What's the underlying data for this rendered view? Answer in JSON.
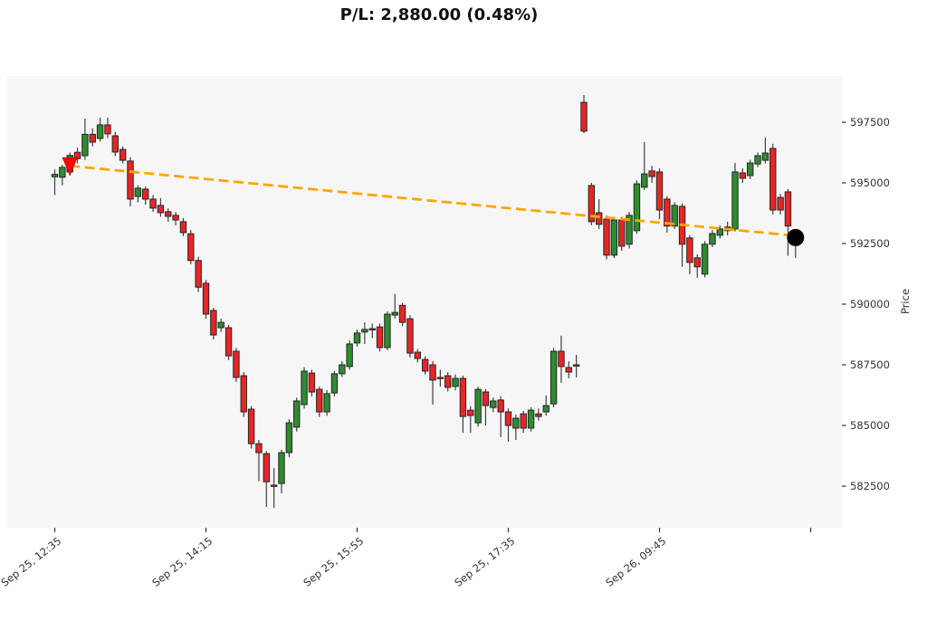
{
  "title": "P/L: 2,880.00 (0.48%)",
  "chart_data": {
    "type": "candlestick",
    "title": "P/L: 2,880.00 (0.48%)",
    "ylabel": "Price",
    "xlabel": "",
    "grid": false,
    "legend": "none",
    "ylim": [
      580800,
      599370
    ],
    "y_ticks": [
      597500,
      595000,
      592500,
      590000,
      587500,
      585000,
      582500
    ],
    "x_ticks": [
      {
        "index": 0,
        "label": "Sep 25, 12:35"
      },
      {
        "index": 20,
        "label": "Sep 25, 14:15"
      },
      {
        "index": 40,
        "label": "Sep 25, 15:55"
      },
      {
        "index": 60,
        "label": "Sep 25, 17:35"
      },
      {
        "index": 80,
        "label": "Sep 26, 09:45"
      },
      {
        "index": 100,
        "label": ""
      }
    ],
    "colors": {
      "up": "#2e8b2e",
      "down": "#e82525",
      "candle_outline": "#262626",
      "wick": "#404040",
      "trade_line": "#ffa500",
      "entry_marker": "#ff0000",
      "exit_marker": "#000000",
      "plot_bg": "#f6f6f6",
      "tick_text": "#333333"
    },
    "trade": {
      "entry_index": 2,
      "entry_price": 595700,
      "exit_index": 98,
      "exit_price": 592820,
      "pl_value": "2,880.00",
      "pl_percent": "0.48%"
    },
    "candles": [
      [
        595250,
        595550,
        594500,
        595350
      ],
      [
        595230,
        595750,
        594900,
        595640
      ],
      [
        595450,
        596250,
        595300,
        596130
      ],
      [
        596260,
        596450,
        595800,
        596000
      ],
      [
        596120,
        597650,
        595950,
        597000
      ],
      [
        597000,
        597250,
        596500,
        596680
      ],
      [
        596830,
        597690,
        596700,
        597390
      ],
      [
        597390,
        597690,
        596850,
        597020
      ],
      [
        596940,
        597100,
        596100,
        596270
      ],
      [
        596380,
        596500,
        595800,
        595930
      ],
      [
        595900,
        596050,
        594030,
        594330
      ],
      [
        594440,
        594900,
        594200,
        594780
      ],
      [
        594740,
        594850,
        594100,
        594330
      ],
      [
        594330,
        594500,
        593800,
        593960
      ],
      [
        594070,
        594370,
        593600,
        593770
      ],
      [
        593810,
        593950,
        593400,
        593620
      ],
      [
        593660,
        593800,
        593250,
        593470
      ],
      [
        593400,
        593550,
        592800,
        592950
      ],
      [
        592900,
        593050,
        591650,
        591800
      ],
      [
        591800,
        591950,
        590500,
        590700
      ],
      [
        590860,
        591000,
        589400,
        589590
      ],
      [
        589740,
        589850,
        588550,
        588730
      ],
      [
        589030,
        589400,
        588850,
        589250
      ],
      [
        589030,
        589150,
        587700,
        587870
      ],
      [
        588060,
        588200,
        586800,
        586980
      ],
      [
        587050,
        587200,
        585350,
        585560
      ],
      [
        585670,
        585800,
        584050,
        584250
      ],
      [
        584250,
        584400,
        582700,
        583880
      ],
      [
        583840,
        583950,
        581640,
        582680
      ],
      [
        582540,
        583250,
        581600,
        582500
      ],
      [
        582610,
        584000,
        582200,
        583880
      ],
      [
        583880,
        585250,
        583700,
        585110
      ],
      [
        584930,
        586150,
        584750,
        586010
      ],
      [
        585860,
        587400,
        585700,
        587240
      ],
      [
        587160,
        587300,
        586200,
        586380
      ],
      [
        586490,
        586600,
        585350,
        585560
      ],
      [
        585560,
        586450,
        585400,
        586310
      ],
      [
        586340,
        587250,
        586200,
        587130
      ],
      [
        587130,
        587650,
        587000,
        587500
      ],
      [
        587430,
        588500,
        587300,
        588360
      ],
      [
        588400,
        588950,
        588250,
        588810
      ],
      [
        588850,
        589250,
        588360,
        588960
      ],
      [
        588990,
        589200,
        588600,
        588970
      ],
      [
        589060,
        589200,
        588050,
        588210
      ],
      [
        588210,
        589700,
        588100,
        589590
      ],
      [
        589550,
        590420,
        589400,
        589660
      ],
      [
        589950,
        590050,
        589100,
        589250
      ],
      [
        589400,
        589550,
        587800,
        587980
      ],
      [
        588020,
        588150,
        587600,
        587760
      ],
      [
        587720,
        587850,
        587100,
        587240
      ],
      [
        587500,
        587650,
        585860,
        586870
      ],
      [
        586980,
        587300,
        586600,
        586950
      ],
      [
        587050,
        587200,
        586400,
        586570
      ],
      [
        586610,
        587100,
        586450,
        586940
      ],
      [
        586940,
        587050,
        584700,
        585370
      ],
      [
        585630,
        585800,
        584700,
        585410
      ],
      [
        585110,
        586600,
        584950,
        586490
      ],
      [
        586380,
        586500,
        585000,
        585820
      ],
      [
        585740,
        586150,
        585550,
        586010
      ],
      [
        586050,
        586200,
        584520,
        585560
      ],
      [
        585560,
        585700,
        584330,
        585000
      ],
      [
        584890,
        585450,
        584400,
        585300
      ],
      [
        585480,
        585600,
        584700,
        584890
      ],
      [
        584890,
        585750,
        584750,
        585630
      ],
      [
        585480,
        585700,
        585200,
        585370
      ],
      [
        585560,
        586240,
        585400,
        585820
      ],
      [
        585890,
        588200,
        585750,
        588060
      ],
      [
        588060,
        588700,
        586760,
        587430
      ],
      [
        587390,
        587650,
        586950,
        587200
      ],
      [
        587460,
        587910,
        586980,
        587500
      ],
      [
        598320,
        598620,
        597050,
        597130
      ],
      [
        594890,
        595000,
        593250,
        593400
      ],
      [
        593770,
        594330,
        593100,
        593290
      ],
      [
        593510,
        593650,
        591850,
        592020
      ],
      [
        592020,
        593600,
        591900,
        593470
      ],
      [
        593470,
        593600,
        592200,
        592390
      ],
      [
        592470,
        593800,
        592300,
        593660
      ],
      [
        593030,
        595100,
        592900,
        594960
      ],
      [
        594820,
        596680,
        594700,
        595370
      ],
      [
        595490,
        595700,
        595000,
        595260
      ],
      [
        595450,
        595600,
        593500,
        593880
      ],
      [
        594330,
        594450,
        592950,
        593220
      ],
      [
        593220,
        594200,
        593100,
        594070
      ],
      [
        594030,
        594150,
        591540,
        592470
      ],
      [
        592730,
        592850,
        591240,
        591720
      ],
      [
        591910,
        592050,
        591090,
        591540
      ],
      [
        591240,
        592600,
        591100,
        592470
      ],
      [
        592470,
        593050,
        592350,
        592910
      ],
      [
        592840,
        593250,
        592700,
        593100
      ],
      [
        593180,
        593400,
        592840,
        593030
      ],
      [
        593100,
        595820,
        593000,
        595450
      ],
      [
        595410,
        595600,
        595000,
        595190
      ],
      [
        595300,
        595950,
        595150,
        595820
      ],
      [
        595780,
        596250,
        595650,
        596120
      ],
      [
        595930,
        596870,
        595800,
        596230
      ],
      [
        596420,
        596610,
        593700,
        593880
      ],
      [
        594400,
        594550,
        593700,
        593880
      ],
      [
        594630,
        594750,
        591990,
        593220
      ],
      [
        592580,
        593050,
        591910,
        592910
      ]
    ]
  }
}
